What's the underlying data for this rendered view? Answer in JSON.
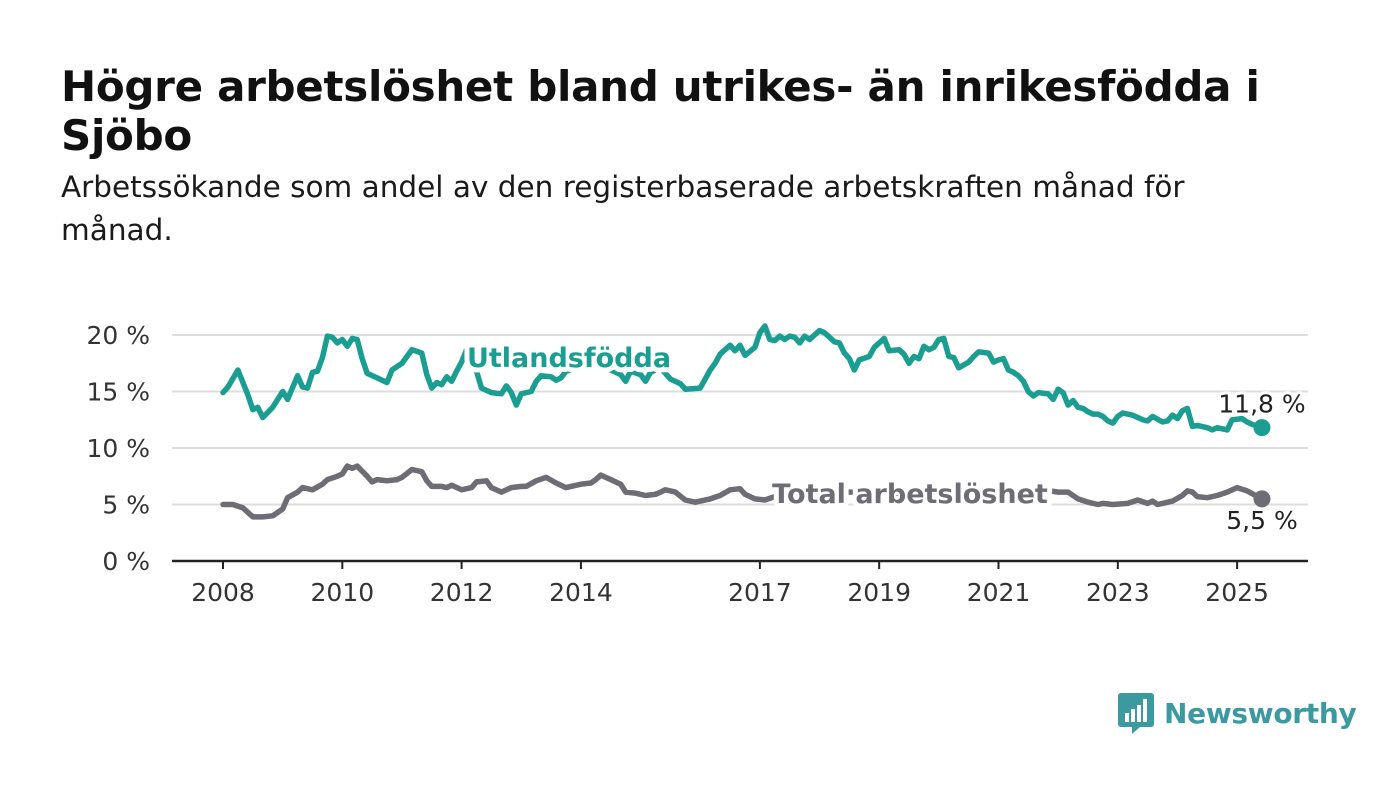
{
  "title": "Högre arbetslöshet bland utrikes- än inrikesfödda i Sjöbo",
  "subtitle": "Arbetssökande som andel av den registerbaserade arbetskraften månad för månad.",
  "brand": {
    "name": "Newsworthy",
    "icon": "bar-chart-speech-bubble-icon"
  },
  "colors": {
    "foreign": "#1a9e91",
    "total": "#6e6c74",
    "grid": "#dddddd",
    "axis": "#222222"
  },
  "chart_data": {
    "type": "line",
    "ylim": [
      0,
      20
    ],
    "y_ticks": [
      {
        "value": 0,
        "label": "0 %"
      },
      {
        "value": 5,
        "label": "5 %"
      },
      {
        "value": 10,
        "label": "10 %"
      },
      {
        "value": 15,
        "label": "15 %"
      },
      {
        "value": 20,
        "label": "20 %"
      }
    ],
    "x_range": [
      "2008-01",
      "2025-06"
    ],
    "x_ticks": [
      {
        "value": "2008-01",
        "label": "2008"
      },
      {
        "value": "2010-01",
        "label": "2010"
      },
      {
        "value": "2012-01",
        "label": "2012"
      },
      {
        "value": "2014-01",
        "label": "2014"
      },
      {
        "value": "2017-01",
        "label": "2017"
      },
      {
        "value": "2019-01",
        "label": "2019"
      },
      {
        "value": "2021-01",
        "label": "2021"
      },
      {
        "value": "2023-01",
        "label": "2023"
      },
      {
        "value": "2025-01",
        "label": "2025"
      }
    ],
    "grid": true,
    "series": [
      {
        "name": "Utlandsfödda",
        "color": "#1a9e91",
        "end_label": "11,8 %",
        "points": [
          [
            "2008-01",
            14.9
          ],
          [
            "2008-02",
            15.4
          ],
          [
            "2008-04",
            16.9
          ],
          [
            "2008-06",
            14.7
          ],
          [
            "2008-07",
            13.4
          ],
          [
            "2008-08",
            13.6
          ],
          [
            "2008-09",
            12.7
          ],
          [
            "2008-11",
            13.6
          ],
          [
            "2009-01",
            15.0
          ],
          [
            "2009-02",
            14.3
          ],
          [
            "2009-04",
            16.4
          ],
          [
            "2009-05",
            15.4
          ],
          [
            "2009-06",
            15.3
          ],
          [
            "2009-07",
            16.7
          ],
          [
            "2009-08",
            16.8
          ],
          [
            "2009-09",
            18.0
          ],
          [
            "2009-10",
            19.9
          ],
          [
            "2009-11",
            19.8
          ],
          [
            "2009-12",
            19.3
          ],
          [
            "2010-01",
            19.6
          ],
          [
            "2010-02",
            19.0
          ],
          [
            "2010-03",
            19.7
          ],
          [
            "2010-04",
            19.6
          ],
          [
            "2010-05",
            17.9
          ],
          [
            "2010-06",
            16.6
          ],
          [
            "2010-08",
            16.2
          ],
          [
            "2010-10",
            15.8
          ],
          [
            "2010-11",
            16.9
          ],
          [
            "2011-01",
            17.5
          ],
          [
            "2011-03",
            18.7
          ],
          [
            "2011-05",
            18.4
          ],
          [
            "2011-06",
            16.5
          ],
          [
            "2011-07",
            15.3
          ],
          [
            "2011-08",
            15.8
          ],
          [
            "2011-09",
            15.6
          ],
          [
            "2011-10",
            16.3
          ],
          [
            "2011-11",
            15.9
          ],
          [
            "2011-12",
            16.8
          ],
          [
            "2012-01",
            17.6
          ],
          [
            "2012-02",
            18.7
          ],
          [
            "2012-03",
            17.4
          ],
          [
            "2012-04",
            16.8
          ],
          [
            "2012-05",
            15.3
          ],
          [
            "2012-07",
            14.9
          ],
          [
            "2012-09",
            14.8
          ],
          [
            "2012-10",
            15.5
          ],
          [
            "2012-11",
            14.9
          ],
          [
            "2012-12",
            13.8
          ],
          [
            "2013-01",
            14.8
          ],
          [
            "2013-03",
            15.0
          ],
          [
            "2013-04",
            15.9
          ],
          [
            "2013-05",
            16.4
          ],
          [
            "2013-07",
            16.3
          ],
          [
            "2013-08",
            16.0
          ],
          [
            "2013-09",
            16.2
          ],
          [
            "2013-10",
            16.8
          ],
          [
            "2014-01",
            17.2
          ],
          [
            "2014-04",
            17.5
          ],
          [
            "2014-07",
            16.9
          ],
          [
            "2014-09",
            16.5
          ],
          [
            "2014-10",
            15.9
          ],
          [
            "2014-11",
            16.8
          ],
          [
            "2015-01",
            16.5
          ],
          [
            "2015-02",
            15.9
          ],
          [
            "2015-03",
            16.7
          ],
          [
            "2015-05",
            17.1
          ],
          [
            "2015-07",
            16.1
          ],
          [
            "2015-09",
            15.7
          ],
          [
            "2015-10",
            15.2
          ],
          [
            "2016-01",
            15.3
          ],
          [
            "2016-03",
            16.9
          ],
          [
            "2016-04",
            17.5
          ],
          [
            "2016-05",
            18.3
          ],
          [
            "2016-07",
            19.1
          ],
          [
            "2016-08",
            18.6
          ],
          [
            "2016-09",
            19.1
          ],
          [
            "2016-10",
            18.2
          ],
          [
            "2016-12",
            18.9
          ],
          [
            "2017-01",
            20.2
          ],
          [
            "2017-02",
            20.8
          ],
          [
            "2017-03",
            19.6
          ],
          [
            "2017-04",
            19.5
          ],
          [
            "2017-05",
            19.9
          ],
          [
            "2017-06",
            19.6
          ],
          [
            "2017-07",
            19.9
          ],
          [
            "2017-08",
            19.8
          ],
          [
            "2017-09",
            19.3
          ],
          [
            "2017-10",
            19.9
          ],
          [
            "2017-11",
            19.6
          ],
          [
            "2018-01",
            20.4
          ],
          [
            "2018-02",
            20.2
          ],
          [
            "2018-04",
            19.4
          ],
          [
            "2018-05",
            19.3
          ],
          [
            "2018-06",
            18.4
          ],
          [
            "2018-07",
            17.9
          ],
          [
            "2018-08",
            16.9
          ],
          [
            "2018-09",
            17.8
          ],
          [
            "2018-11",
            18.1
          ],
          [
            "2018-12",
            18.9
          ],
          [
            "2019-02",
            19.7
          ],
          [
            "2019-03",
            18.6
          ],
          [
            "2019-05",
            18.7
          ],
          [
            "2019-06",
            18.3
          ],
          [
            "2019-07",
            17.5
          ],
          [
            "2019-08",
            18.1
          ],
          [
            "2019-09",
            17.9
          ],
          [
            "2019-10",
            19.0
          ],
          [
            "2019-11",
            18.7
          ],
          [
            "2019-12",
            18.9
          ],
          [
            "2020-01",
            19.6
          ],
          [
            "2020-02",
            19.7
          ],
          [
            "2020-03",
            18.1
          ],
          [
            "2020-04",
            18.0
          ],
          [
            "2020-05",
            17.1
          ],
          [
            "2020-07",
            17.6
          ],
          [
            "2020-08",
            18.1
          ],
          [
            "2020-09",
            18.5
          ],
          [
            "2020-11",
            18.4
          ],
          [
            "2020-12",
            17.6
          ],
          [
            "2021-01",
            17.8
          ],
          [
            "2021-02",
            17.9
          ],
          [
            "2021-03",
            16.9
          ],
          [
            "2021-04",
            16.7
          ],
          [
            "2021-05",
            16.4
          ],
          [
            "2021-06",
            15.9
          ],
          [
            "2021-07",
            15.0
          ],
          [
            "2021-08",
            14.6
          ],
          [
            "2021-09",
            14.9
          ],
          [
            "2021-11",
            14.8
          ],
          [
            "2021-12",
            14.3
          ],
          [
            "2022-01",
            15.2
          ],
          [
            "2022-02",
            14.9
          ],
          [
            "2022-03",
            13.8
          ],
          [
            "2022-04",
            14.2
          ],
          [
            "2022-05",
            13.6
          ],
          [
            "2022-06",
            13.5
          ],
          [
            "2022-07",
            13.2
          ],
          [
            "2022-08",
            13.0
          ],
          [
            "2022-09",
            13.0
          ],
          [
            "2022-10",
            12.8
          ],
          [
            "2022-11",
            12.4
          ],
          [
            "2022-12",
            12.2
          ],
          [
            "2023-01",
            12.8
          ],
          [
            "2023-02",
            13.1
          ],
          [
            "2023-04",
            12.9
          ],
          [
            "2023-06",
            12.5
          ],
          [
            "2023-07",
            12.4
          ],
          [
            "2023-08",
            12.8
          ],
          [
            "2023-10",
            12.3
          ],
          [
            "2023-11",
            12.4
          ],
          [
            "2023-12",
            12.9
          ],
          [
            "2024-01",
            12.6
          ],
          [
            "2024-02",
            13.3
          ],
          [
            "2024-03",
            13.5
          ],
          [
            "2024-04",
            11.9
          ],
          [
            "2024-05",
            12.0
          ],
          [
            "2024-07",
            11.8
          ],
          [
            "2024-08",
            11.6
          ],
          [
            "2024-09",
            11.8
          ],
          [
            "2024-10",
            11.7
          ],
          [
            "2024-11",
            11.6
          ],
          [
            "2024-12",
            12.5
          ],
          [
            "2025-02",
            12.6
          ],
          [
            "2025-03",
            12.3
          ],
          [
            "2025-04",
            12.1
          ],
          [
            "2025-06",
            11.8
          ]
        ]
      },
      {
        "name": "Total arbetslöshet",
        "color": "#6e6c74",
        "end_label": "5,5 %",
        "points": [
          [
            "2008-01",
            5.0
          ],
          [
            "2008-03",
            5.0
          ],
          [
            "2008-05",
            4.7
          ],
          [
            "2008-07",
            3.9
          ],
          [
            "2008-09",
            3.9
          ],
          [
            "2008-11",
            4.0
          ],
          [
            "2009-01",
            4.6
          ],
          [
            "2009-02",
            5.6
          ],
          [
            "2009-04",
            6.1
          ],
          [
            "2009-05",
            6.5
          ],
          [
            "2009-07",
            6.3
          ],
          [
            "2009-09",
            6.8
          ],
          [
            "2009-10",
            7.2
          ],
          [
            "2009-12",
            7.5
          ],
          [
            "2010-01",
            7.7
          ],
          [
            "2010-02",
            8.4
          ],
          [
            "2010-03",
            8.2
          ],
          [
            "2010-04",
            8.4
          ],
          [
            "2010-06",
            7.5
          ],
          [
            "2010-07",
            7.0
          ],
          [
            "2010-08",
            7.2
          ],
          [
            "2010-10",
            7.1
          ],
          [
            "2010-12",
            7.2
          ],
          [
            "2011-01",
            7.4
          ],
          [
            "2011-03",
            8.1
          ],
          [
            "2011-05",
            7.9
          ],
          [
            "2011-06",
            7.1
          ],
          [
            "2011-07",
            6.6
          ],
          [
            "2011-09",
            6.6
          ],
          [
            "2011-10",
            6.5
          ],
          [
            "2011-11",
            6.7
          ],
          [
            "2012-01",
            6.3
          ],
          [
            "2012-03",
            6.5
          ],
          [
            "2012-04",
            7.0
          ],
          [
            "2012-06",
            7.1
          ],
          [
            "2012-07",
            6.5
          ],
          [
            "2012-09",
            6.1
          ],
          [
            "2012-11",
            6.5
          ],
          [
            "2013-01",
            6.6
          ],
          [
            "2013-02",
            6.6
          ],
          [
            "2013-04",
            7.1
          ],
          [
            "2013-06",
            7.4
          ],
          [
            "2013-08",
            6.9
          ],
          [
            "2013-10",
            6.5
          ],
          [
            "2013-12",
            6.7
          ],
          [
            "2014-01",
            6.8
          ],
          [
            "2014-03",
            6.9
          ],
          [
            "2014-04",
            7.2
          ],
          [
            "2014-05",
            7.6
          ],
          [
            "2014-07",
            7.2
          ],
          [
            "2014-09",
            6.8
          ],
          [
            "2014-10",
            6.1
          ],
          [
            "2014-12",
            6.0
          ],
          [
            "2015-02",
            5.8
          ],
          [
            "2015-04",
            5.9
          ],
          [
            "2015-05",
            6.1
          ],
          [
            "2015-06",
            6.3
          ],
          [
            "2015-08",
            6.1
          ],
          [
            "2015-10",
            5.4
          ],
          [
            "2015-12",
            5.2
          ],
          [
            "2016-01",
            5.3
          ],
          [
            "2016-03",
            5.5
          ],
          [
            "2016-05",
            5.8
          ],
          [
            "2016-07",
            6.3
          ],
          [
            "2016-09",
            6.4
          ],
          [
            "2016-10",
            5.9
          ],
          [
            "2016-12",
            5.5
          ],
          [
            "2017-02",
            5.4
          ],
          [
            "2017-04",
            5.7
          ],
          [
            "2017-06",
            6.0
          ],
          [
            "2017-08",
            6.1
          ],
          [
            "2017-10",
            6.0
          ],
          [
            "2017-12",
            6.0
          ],
          [
            "2018-02",
            6.2
          ],
          [
            "2018-06",
            6.1
          ],
          [
            "2018-12",
            6.1
          ],
          [
            "2019-06",
            6.0
          ],
          [
            "2019-12",
            6.1
          ],
          [
            "2020-06",
            6.3
          ],
          [
            "2020-10",
            6.2
          ],
          [
            "2021-02",
            6.0
          ],
          [
            "2021-06",
            5.9
          ],
          [
            "2021-10",
            6.3
          ],
          [
            "2022-01",
            6.1
          ],
          [
            "2022-03",
            6.1
          ],
          [
            "2022-05",
            5.5
          ],
          [
            "2022-07",
            5.2
          ],
          [
            "2022-09",
            5.0
          ],
          [
            "2022-10",
            5.1
          ],
          [
            "2022-12",
            5.0
          ],
          [
            "2023-03",
            5.1
          ],
          [
            "2023-05",
            5.4
          ],
          [
            "2023-07",
            5.1
          ],
          [
            "2023-08",
            5.3
          ],
          [
            "2023-09",
            5.0
          ],
          [
            "2023-10",
            5.1
          ],
          [
            "2023-12",
            5.3
          ],
          [
            "2024-02",
            5.8
          ],
          [
            "2024-03",
            6.2
          ],
          [
            "2024-04",
            6.1
          ],
          [
            "2024-05",
            5.7
          ],
          [
            "2024-07",
            5.6
          ],
          [
            "2024-09",
            5.8
          ],
          [
            "2024-11",
            6.1
          ],
          [
            "2025-01",
            6.5
          ],
          [
            "2025-03",
            6.2
          ],
          [
            "2025-06",
            5.5
          ]
        ]
      }
    ]
  }
}
